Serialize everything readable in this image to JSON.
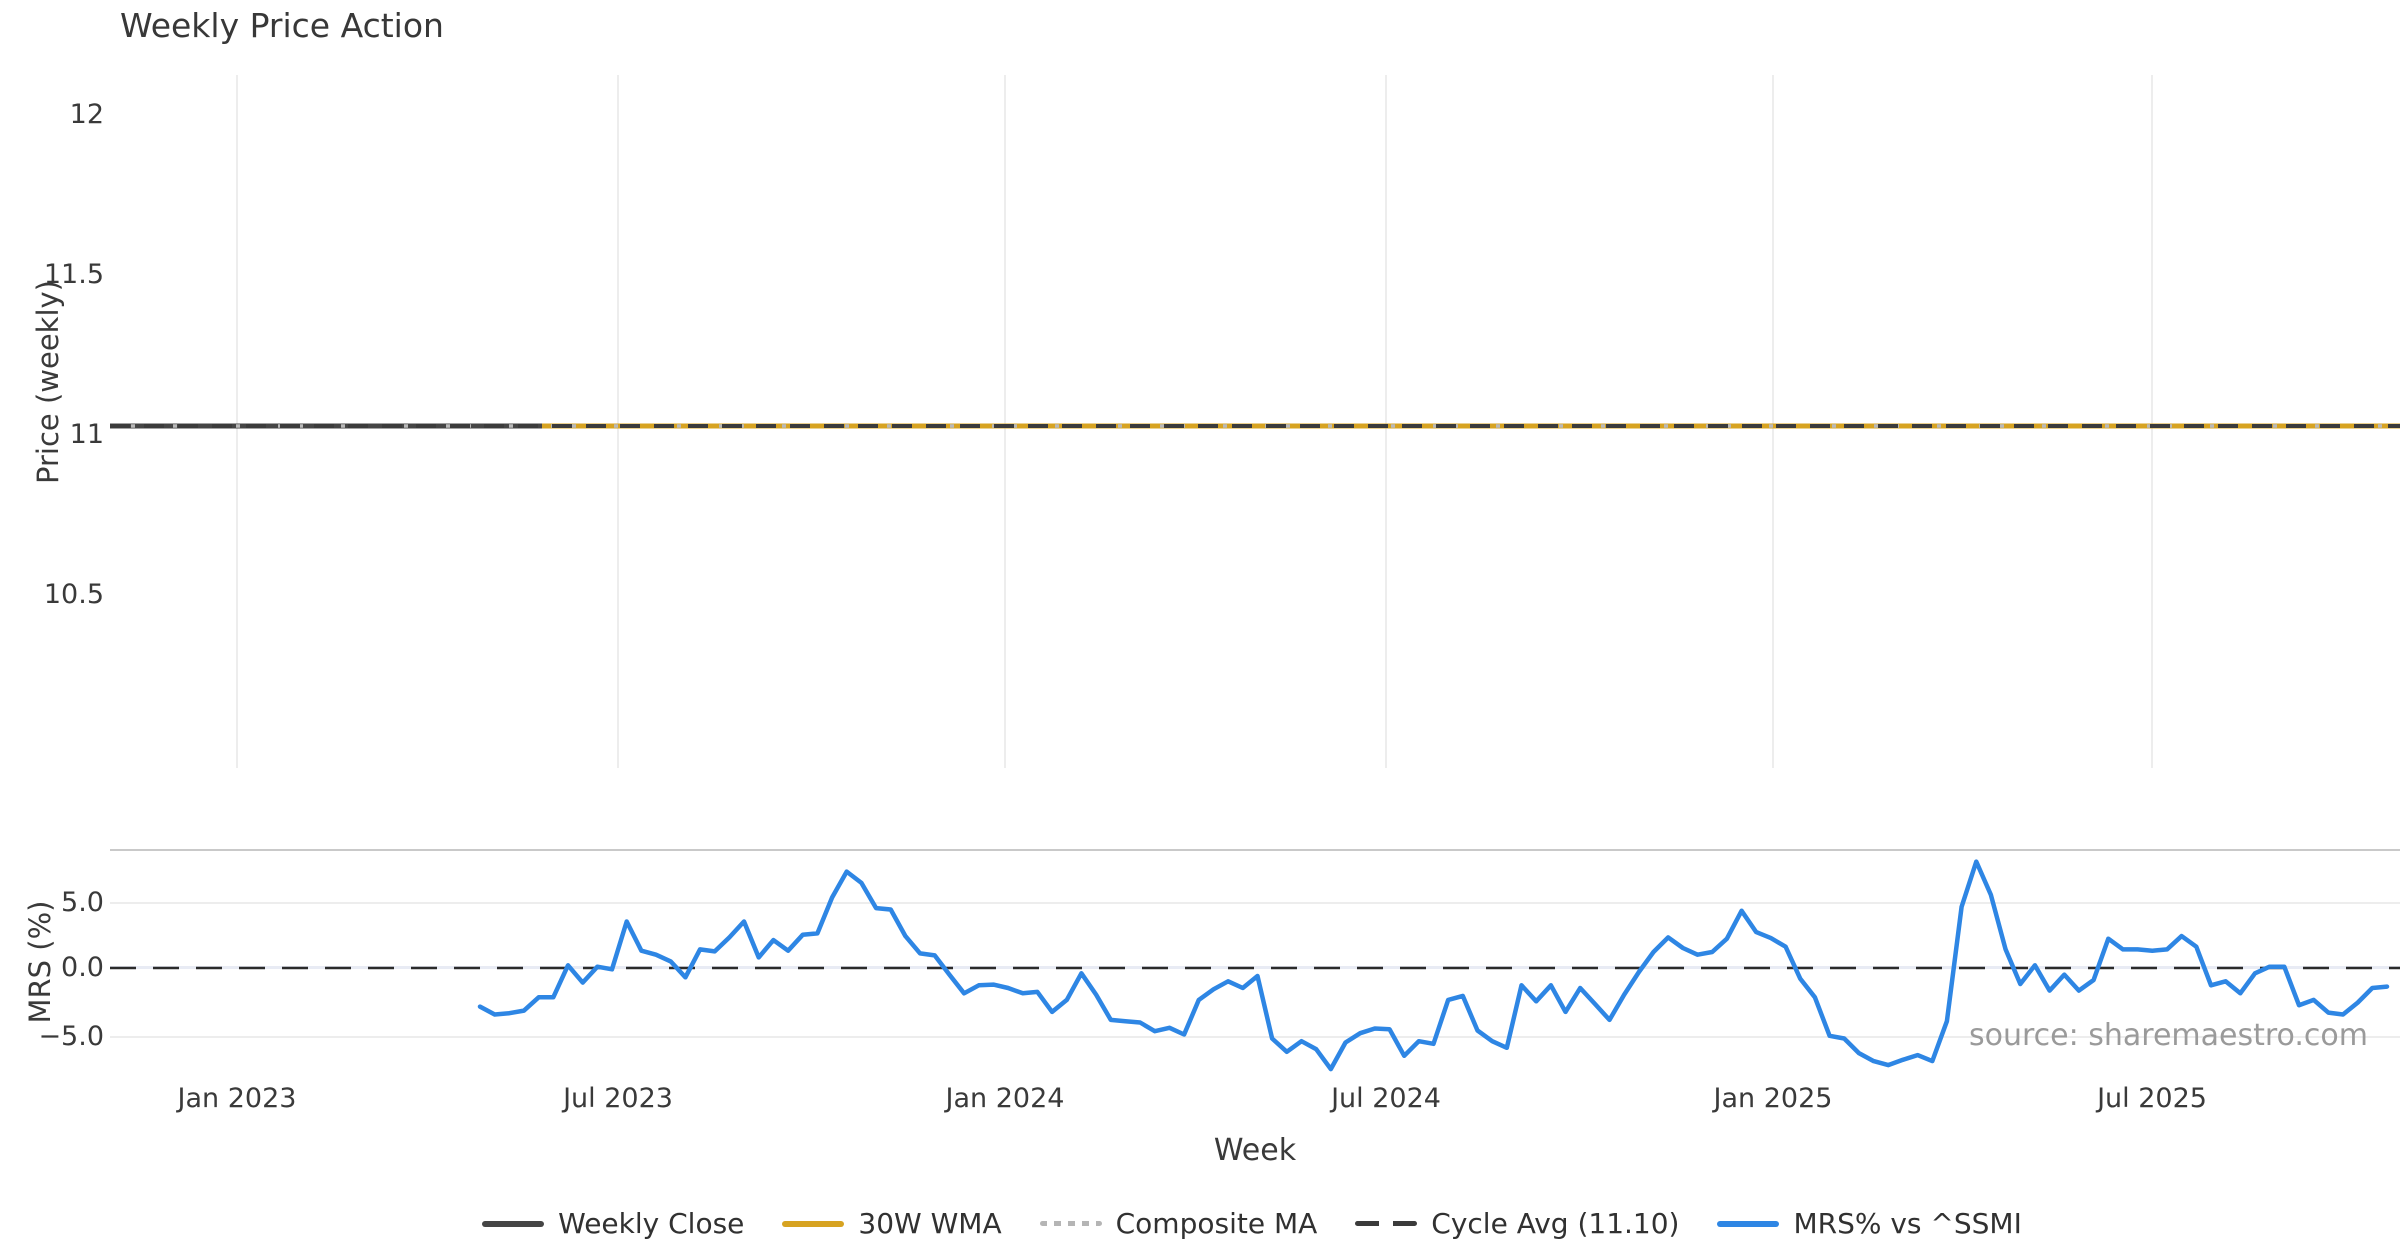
{
  "title": "Weekly Price Action",
  "price_panel": {
    "y_label": "Price (weekly)",
    "y_ticks": [
      "12",
      "11.5",
      "11",
      "10.5"
    ],
    "cycle_avg_value": 11.1
  },
  "mrs_panel": {
    "y_label": "MRS (%)",
    "y_ticks": [
      "5.0",
      "0.0",
      "−5.0"
    ],
    "source_text": "source: sharemaestro.com"
  },
  "x_axis": {
    "label": "Week",
    "ticks": [
      "Jan 2023",
      "Jul 2023",
      "Jan 2024",
      "Jul 2024",
      "Jan 2025",
      "Jul 2025"
    ]
  },
  "legend": [
    {
      "label": "Weekly Close",
      "color": "#454545",
      "style": "solid"
    },
    {
      "label": "30W WMA",
      "color": "#d7a321",
      "style": "solid"
    },
    {
      "label": "Composite MA",
      "color": "#b5b5b5",
      "style": "dotted"
    },
    {
      "label": "Cycle Avg (11.10)",
      "color": "#3b3b3b",
      "style": "dashed"
    },
    {
      "label": "MRS% vs ^SSMI",
      "color": "#2e86e4",
      "style": "solid"
    }
  ],
  "chart_data": [
    {
      "type": "line",
      "title": "Weekly Price Action",
      "xlabel": "Week",
      "ylabel": "Price (weekly)",
      "x_tick_labels": [
        "Jan 2023",
        "Jul 2023",
        "Jan 2024",
        "Jul 2024",
        "Jan 2025",
        "Jul 2025"
      ],
      "y_tick_labels": [
        12,
        11.5,
        11,
        10.5
      ],
      "ylim": [
        9.96,
        12.13
      ],
      "grid": "vertical-only",
      "series": [
        {
          "name": "Weekly Close",
          "style": "solid",
          "constant_value": 11.1,
          "range": [
            "2022-11",
            "2025-11"
          ]
        },
        {
          "name": "30W WMA",
          "style": "solid",
          "constant_value": 11.1,
          "range": [
            "2023-06",
            "2025-11"
          ]
        },
        {
          "name": "Composite MA",
          "style": "dotted",
          "constant_value": 11.1,
          "range": [
            "2022-11",
            "2025-11"
          ]
        },
        {
          "name": "Cycle Avg (11.10)",
          "style": "dashed",
          "constant_value": 11.1,
          "range": [
            "2022-11",
            "2025-11"
          ]
        }
      ]
    },
    {
      "type": "line",
      "xlabel": "Week",
      "ylabel": "MRS (%)",
      "y_tick_labels": [
        5.0,
        0.0,
        -5.0
      ],
      "ylim": [
        -7.8,
        8.9
      ],
      "grid": "horizontal-only",
      "zero_line": "dashed",
      "legend_position": "below-figure",
      "series": [
        {
          "name": "MRS% vs ^SSMI",
          "x_start_week": "2023-04-28",
          "x_step_days": 7,
          "values": [
            -2.9,
            -3.5,
            -3.4,
            -3.2,
            -2.2,
            -2.2,
            0.2,
            -1.1,
            0.1,
            -0.1,
            3.5,
            1.3,
            1.0,
            0.5,
            -0.7,
            1.4,
            1.25,
            2.3,
            3.5,
            0.8,
            2.1,
            1.3,
            2.5,
            2.6,
            5.3,
            7.25,
            6.4,
            4.5,
            4.4,
            2.4,
            1.1,
            0.95,
            -0.5,
            -1.9,
            -1.3,
            -1.25,
            -1.5,
            -1.9,
            -1.8,
            -3.3,
            -2.4,
            -0.4,
            -2.0,
            -3.9,
            -4.0,
            -4.1,
            -4.75,
            -4.5,
            -5.0,
            -2.4,
            -1.6,
            -1.0,
            -1.5,
            -0.6,
            -5.3,
            -6.3,
            -5.5,
            -6.1,
            -7.6,
            -5.6,
            -4.9,
            -4.55,
            -4.6,
            -6.6,
            -5.5,
            -5.7,
            -2.4,
            -2.1,
            -4.7,
            -5.5,
            -6.0,
            -1.3,
            -2.5,
            -1.3,
            -3.3,
            -1.5,
            -2.7,
            -3.9,
            -2.0,
            -0.3,
            1.2,
            2.3,
            1.5,
            1.0,
            1.2,
            2.2,
            4.3,
            2.7,
            2.25,
            1.6,
            -0.8,
            -2.2,
            -5.1,
            -5.3,
            -6.4,
            -7.0,
            -7.3,
            -6.9,
            -6.55,
            -7.0,
            -4.0,
            4.6,
            8.0,
            5.5,
            1.4,
            -1.2,
            0.2,
            -1.7,
            -0.5,
            -1.7,
            -0.9,
            2.2,
            1.4,
            1.4,
            1.3,
            1.4,
            2.4,
            1.6,
            -1.3,
            -1.0,
            -1.9,
            -0.4,
            0.1,
            0.1,
            -2.8,
            -2.4,
            -3.35,
            -3.5,
            -2.6,
            -1.5,
            -1.4
          ]
        }
      ],
      "annotations": [
        {
          "text": "source: sharemaestro.com",
          "position": "bottom-right",
          "color": "#9a9a9a"
        }
      ]
    }
  ]
}
